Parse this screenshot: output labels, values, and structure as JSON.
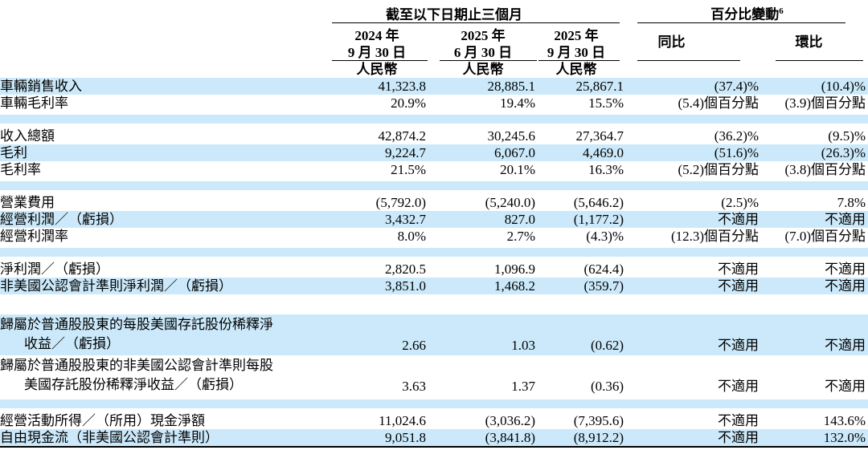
{
  "colors": {
    "highlight": "#cbe9fa",
    "rule": "#000000",
    "text": "#000000"
  },
  "header": {
    "group1": "截至以下日期止三個月",
    "group2": "百分比變動",
    "group2_superscript": "6",
    "columns": [
      {
        "year": "2024 年",
        "date": "9 月 30 日",
        "currency": "人民幣"
      },
      {
        "year": "2025 年",
        "date": "6 月 30 日",
        "currency": "人民幣"
      },
      {
        "year": "2025 年",
        "date": "9 月 30 日",
        "currency": "人民幣"
      },
      {
        "label": "同比"
      },
      {
        "label": "環比"
      }
    ]
  },
  "rows": [
    {
      "type": "data",
      "highlight": true,
      "label": "車輛銷售收入",
      "values": [
        "41,323.8",
        "28,885.1",
        "25,867.1",
        "(37.4)%",
        "(10.4)%"
      ]
    },
    {
      "type": "data",
      "highlight": false,
      "label": "車輛毛利率",
      "values": [
        "20.9%",
        "19.4%",
        "15.5%",
        "(5.4)個百分點",
        "(3.9)個百分點"
      ]
    },
    {
      "type": "spacer",
      "highlight": true
    },
    {
      "type": "data",
      "highlight": false,
      "label": "收入總額",
      "values": [
        "42,874.2",
        "30,245.6",
        "27,364.7",
        "(36.2)%",
        "(9.5)%"
      ]
    },
    {
      "type": "data",
      "highlight": true,
      "label": "毛利",
      "values": [
        "9,224.7",
        "6,067.0",
        "4,469.0",
        "(51.6)%",
        "(26.3)%"
      ]
    },
    {
      "type": "data",
      "highlight": false,
      "label": "毛利率",
      "values": [
        "21.5%",
        "20.1%",
        "16.3%",
        "(5.2)個百分點",
        "(3.8)個百分點"
      ]
    },
    {
      "type": "spacer",
      "highlight": true
    },
    {
      "type": "data",
      "highlight": false,
      "label": "營業費用",
      "values": [
        "(5,792.0)",
        "(5,240.0)",
        "(5,646.2)",
        "(2.5)%",
        "7.8%"
      ]
    },
    {
      "type": "data",
      "highlight": true,
      "label": "經營利潤／（虧損）",
      "values": [
        "3,432.7",
        "827.0",
        "(1,177.2)",
        "不適用",
        "不適用"
      ]
    },
    {
      "type": "data",
      "highlight": false,
      "label": "經營利潤率",
      "values": [
        "8.0%",
        "2.7%",
        "(4.3)%",
        "(12.3)個百分點",
        "(7.0)個百分點"
      ]
    },
    {
      "type": "spacer",
      "highlight": true
    },
    {
      "type": "data",
      "highlight": false,
      "label": "淨利潤／（虧損）",
      "values": [
        "2,820.5",
        "1,096.9",
        "(624.4)",
        "不適用",
        "不適用"
      ]
    },
    {
      "type": "data",
      "highlight": true,
      "label": "非美國公認會計準則淨利潤／（虧損）",
      "values": [
        "3,851.0",
        "1,468.2",
        "(359.7)",
        "不適用",
        "不適用"
      ]
    },
    {
      "type": "spacer",
      "highlight": false
    },
    {
      "type": "data",
      "highlight": true,
      "twoline": true,
      "label": "歸屬於普通股股東的每股美國存託股份稀釋淨\n收益／（虧損）",
      "values": [
        "2.66",
        "1.03",
        "(0.62)",
        "不適用",
        "不適用"
      ]
    },
    {
      "type": "data",
      "highlight": false,
      "twoline": true,
      "label": "歸屬於普通股股東的非美國公認會計準則每股\n美國存託股份稀釋淨收益／（虧損）",
      "values": [
        "3.63",
        "1.37",
        "(0.36)",
        "不適用",
        "不適用"
      ]
    },
    {
      "type": "spacer",
      "highlight": true
    },
    {
      "type": "data",
      "highlight": false,
      "label": "經營活動所得／（所用）現金淨額",
      "values": [
        "11,024.6",
        "(3,036.2)",
        "(7,395.6)",
        "不適用",
        "143.6%"
      ]
    },
    {
      "type": "data",
      "highlight": true,
      "label": "自由現金流（非美國公認會計準則）",
      "values": [
        "9,051.8",
        "(3,841.8)",
        "(8,912.2)",
        "不適用",
        "132.0%"
      ]
    }
  ]
}
